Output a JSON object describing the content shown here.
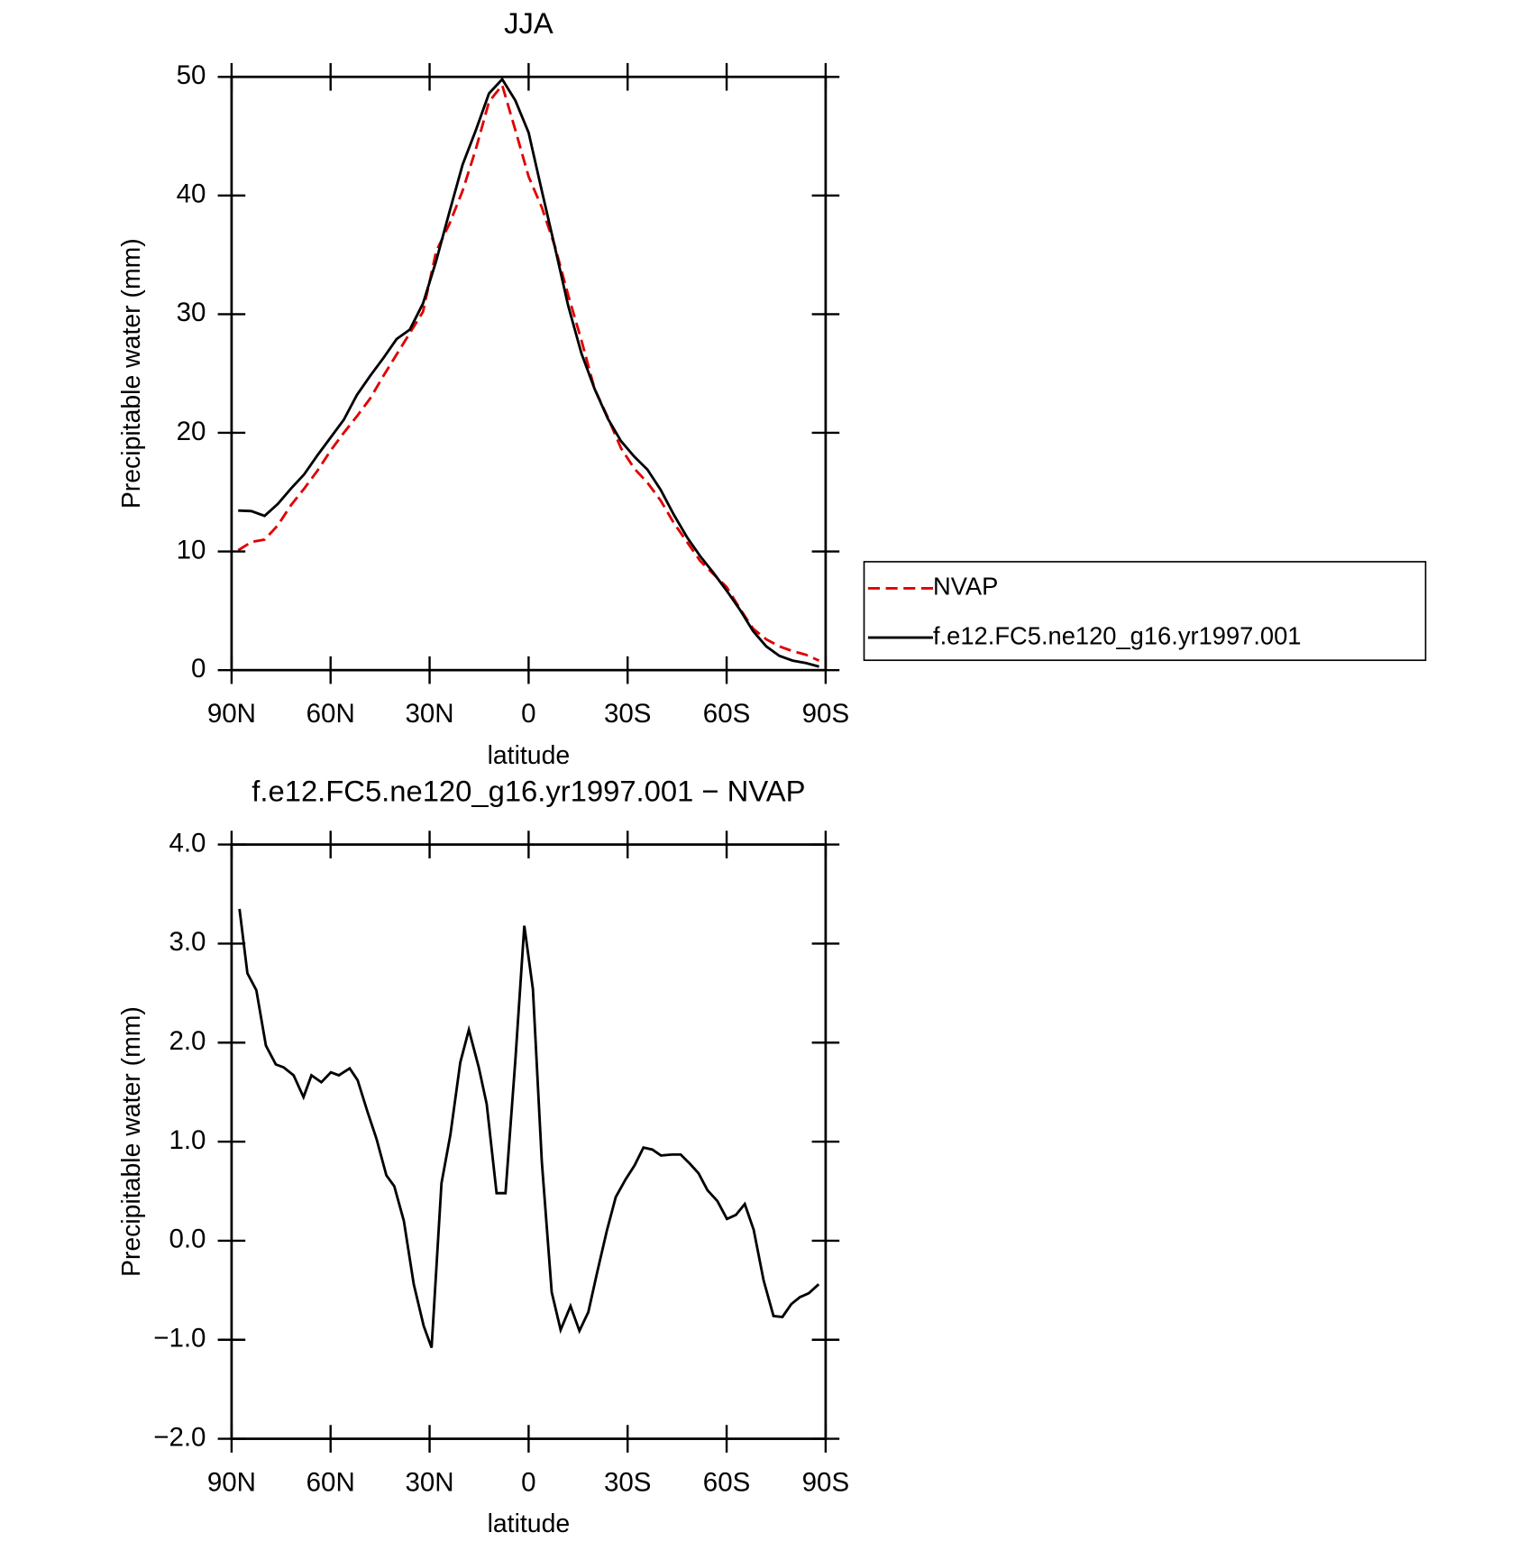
{
  "chart_data": [
    {
      "type": "line",
      "title": "JJA",
      "xlabel": "latitude",
      "ylabel": "Precipitable water (mm)",
      "x": [
        88,
        84,
        80,
        76,
        72,
        68,
        64,
        60,
        56,
        52,
        48,
        44,
        40,
        36,
        32,
        28,
        24,
        20,
        16,
        12,
        8,
        4,
        0,
        -4,
        -8,
        -12,
        -16,
        -20,
        -24,
        -28,
        -32,
        -36,
        -40,
        -44,
        -48,
        -52,
        -56,
        -60,
        -64,
        -68,
        -72,
        -76,
        -80,
        -84,
        -88
      ],
      "series": [
        {
          "name": "NVAP",
          "color": "#e00000",
          "linestyle": "dashed",
          "values": [
            10.1,
            10.8,
            11.0,
            12.2,
            13.9,
            15.3,
            16.8,
            18.5,
            20.0,
            21.4,
            22.9,
            24.8,
            26.6,
            28.4,
            30.2,
            35.3,
            37.6,
            40.4,
            43.9,
            47.9,
            49.3,
            45.5,
            41.6,
            39.0,
            35.7,
            31.6,
            27.8,
            23.7,
            21.3,
            18.7,
            17.0,
            15.8,
            14.3,
            12.4,
            10.8,
            9.2,
            8.1,
            7.0,
            5.2,
            3.5,
            2.6,
            2.0,
            1.6,
            1.3,
            0.8
          ]
        },
        {
          "name": "f.e12.FC5.ne120_g16.yr1997.001",
          "color": "#000000",
          "linestyle": "solid",
          "values": [
            13.45,
            13.4,
            13.0,
            14.0,
            15.3,
            16.5,
            18.1,
            19.6,
            21.1,
            23.2,
            24.8,
            26.3,
            27.9,
            28.7,
            30.9,
            34.5,
            38.6,
            42.6,
            45.5,
            48.6,
            49.8,
            48.0,
            45.3,
            40.4,
            35.6,
            30.7,
            26.7,
            23.7,
            21.2,
            19.3,
            18.0,
            16.9,
            15.2,
            13.1,
            11.2,
            9.6,
            8.2,
            6.7,
            5.1,
            3.3,
            2.0,
            1.2,
            0.8,
            0.6,
            0.3
          ]
        }
      ],
      "xlim": [
        90,
        -90
      ],
      "xticks": [
        {
          "value": 90,
          "label": "90N"
        },
        {
          "value": 60,
          "label": "60N"
        },
        {
          "value": 30,
          "label": "30N"
        },
        0,
        {
          "value": -30,
          "label": "30S"
        },
        {
          "value": -60,
          "label": "60S"
        },
        {
          "value": -90,
          "label": "90S"
        }
      ],
      "ylim": [
        0,
        50
      ],
      "yticks": [
        0,
        10,
        20,
        30,
        40,
        50
      ],
      "grid": false,
      "legend": "right"
    },
    {
      "type": "line",
      "title": "f.e12.FC5.ne120_g16.yr1997.001 − NVAP",
      "xlabel": "latitude",
      "ylabel": "Precipitable water (mm)",
      "x": [
        87.6,
        85.2,
        82.5,
        79.6,
        76.6,
        74.2,
        71.2,
        68.2,
        65.8,
        62.8,
        59.9,
        57.5,
        54.2,
        51.8,
        48.8,
        46.1,
        43.1,
        40.7,
        37.8,
        34.8,
        31.8,
        29.4,
        26.4,
        23.7,
        20.7,
        18.1,
        15.1,
        12.7,
        9.7,
        7.0,
        4.0,
        1.3,
        -1.3,
        -4.0,
        -7.0,
        -9.7,
        -12.7,
        -15.4,
        -18.1,
        -20.7,
        -23.7,
        -26.4,
        -29.4,
        -32.1,
        -34.8,
        -37.5,
        -40.1,
        -43.4,
        -46.1,
        -48.8,
        -51.5,
        -54.2,
        -57.2,
        -60.1,
        -62.8,
        -65.5,
        -68.2,
        -71.2,
        -74.2,
        -76.9,
        -79.6,
        -82.2,
        -84.9,
        -87.9
      ],
      "series": [
        {
          "name": "f.e12.FC5.ne120_g16.yr1997.001 − NVAP",
          "color": "#000000",
          "linestyle": "solid",
          "values": [
            3.35,
            2.7,
            2.53,
            1.97,
            1.78,
            1.75,
            1.67,
            1.45,
            1.67,
            1.6,
            1.7,
            1.67,
            1.74,
            1.62,
            1.3,
            1.03,
            0.66,
            0.55,
            0.2,
            -0.44,
            -0.86,
            -1.08,
            0.58,
            1.07,
            1.8,
            2.13,
            1.75,
            1.38,
            0.48,
            0.48,
            1.83,
            3.18,
            2.54,
            0.8,
            -0.52,
            -0.9,
            -0.66,
            -0.91,
            -0.72,
            -0.33,
            0.1,
            0.44,
            0.62,
            0.76,
            0.94,
            0.92,
            0.86,
            0.87,
            0.87,
            0.78,
            0.68,
            0.51,
            0.4,
            0.22,
            0.26,
            0.37,
            0.11,
            -0.4,
            -0.76,
            -0.77,
            -0.64,
            -0.57,
            -0.53,
            -0.44
          ]
        }
      ],
      "xlim": [
        90,
        -90
      ],
      "xticks": [
        {
          "value": 90,
          "label": "90N"
        },
        {
          "value": 60,
          "label": "60N"
        },
        {
          "value": 30,
          "label": "30N"
        },
        0,
        {
          "value": -30,
          "label": "30S"
        },
        {
          "value": -60,
          "label": "60S"
        },
        {
          "value": -90,
          "label": "90S"
        }
      ],
      "ylim": [
        -2,
        4
      ],
      "yticks": [
        {
          "value": -2,
          "label": "−2.0"
        },
        {
          "value": -1,
          "label": "−1.0"
        },
        {
          "value": 0,
          "label": "0.0"
        },
        {
          "value": 1,
          "label": "1.0"
        },
        {
          "value": 2,
          "label": "2.0"
        },
        {
          "value": 3,
          "label": "3.0"
        },
        {
          "value": 4,
          "label": "4.0"
        }
      ],
      "grid": false
    }
  ]
}
